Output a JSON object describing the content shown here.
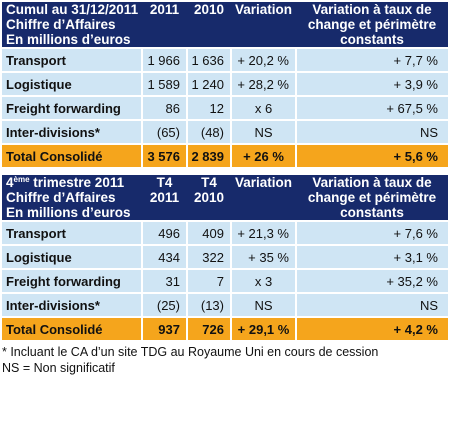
{
  "table1": {
    "header": {
      "label_lines": [
        "Cumul au 31/12/2011",
        "Chiffre d’Affaires",
        "En millions d’euros"
      ],
      "col_2011": "2011",
      "col_2010": "2010",
      "col_variation": "Variation",
      "col_variation_const": "Variation à taux de change et périmètre constants"
    },
    "rows": [
      {
        "label": "Transport",
        "v2011": "1 966",
        "v2010": "1 636",
        "variation": "+ 20,2 %",
        "variation_const": "+ 7,7 %"
      },
      {
        "label": "Logistique",
        "v2011": "1 589",
        "v2010": "1 240",
        "variation": "+ 28,2 %",
        "variation_const": "+ 3,9 %"
      },
      {
        "label": "Freight forwarding",
        "v2011": "86",
        "v2010": "12",
        "variation": "x 6",
        "variation_const": "+ 67,5 %"
      },
      {
        "label": "Inter-divisions*",
        "v2011": "(65)",
        "v2010": "(48)",
        "variation": "NS",
        "variation_const": "NS"
      }
    ],
    "total": {
      "label": "Total Consolidé",
      "v2011": "3 576",
      "v2010": "2 839",
      "variation": "+ 26 %",
      "variation_const": "+ 5,6 %"
    }
  },
  "table2": {
    "header": {
      "label_sup_prefix": "4",
      "label_sup": "ème",
      "label_first_rest": " trimestre 2011",
      "label_lines": [
        "Chiffre d’Affaires",
        "En millions d’euros"
      ],
      "col_t4_2011": "T4 2011",
      "col_t4_2010": "T4 2010",
      "col_variation": "Variation",
      "col_variation_const": "Variation à taux de change et périmètre constants"
    },
    "rows": [
      {
        "label": "Transport",
        "v2011": "496",
        "v2010": "409",
        "variation": "+ 21,3 %",
        "variation_const": "+ 7,6 %"
      },
      {
        "label": "Logistique",
        "v2011": "434",
        "v2010": "322",
        "variation": "+ 35 %",
        "variation_const": "+ 3,1 %"
      },
      {
        "label": "Freight forwarding",
        "v2011": "31",
        "v2010": "7",
        "variation": "x 3",
        "variation_const": "+ 35,2 %"
      },
      {
        "label": "Inter-divisions*",
        "v2011": "(25)",
        "v2010": "(13)",
        "variation": "NS",
        "variation_const": "NS"
      }
    ],
    "total": {
      "label": "Total Consolidé",
      "v2011": "937",
      "v2010": "726",
      "variation": "+ 29,1 %",
      "variation_const": "+ 4,2 %"
    }
  },
  "footnotes": {
    "note_1": "* Incluant le  CA d’un site TDG au Royaume Uni en cours de cession",
    "note_2": "NS = Non significatif"
  },
  "colors": {
    "header_bg": "#172a6b",
    "row_bg": "#cfe5f4",
    "total_bg": "#f5a51c"
  }
}
